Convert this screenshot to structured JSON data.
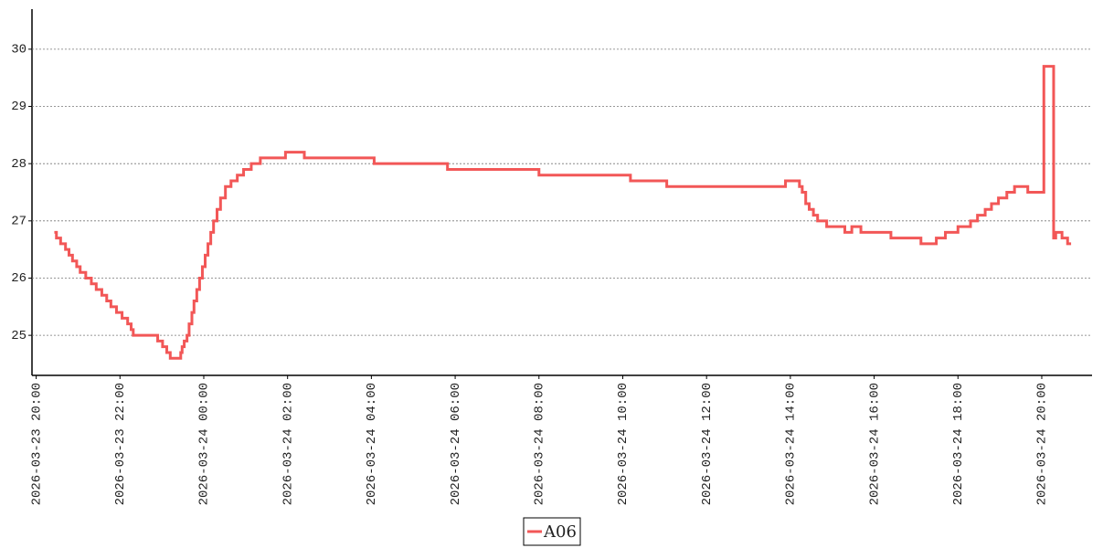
{
  "chart_data": {
    "type": "line",
    "step": true,
    "x": [
      "2026-03-23 20:26",
      "2026-03-23 20:29",
      "2026-03-23 20:35",
      "2026-03-23 20:42",
      "2026-03-23 20:47",
      "2026-03-23 20:52",
      "2026-03-23 20:58",
      "2026-03-23 21:03",
      "2026-03-23 21:11",
      "2026-03-23 21:19",
      "2026-03-23 21:26",
      "2026-03-23 21:34",
      "2026-03-23 21:41",
      "2026-03-23 21:47",
      "2026-03-23 21:55",
      "2026-03-23 22:03",
      "2026-03-23 22:11",
      "2026-03-23 22:16",
      "2026-03-23 22:19",
      "2026-03-23 22:54",
      "2026-03-23 23:01",
      "2026-03-23 23:07",
      "2026-03-23 23:12",
      "2026-03-23 23:27",
      "2026-03-23 23:29",
      "2026-03-23 23:32",
      "2026-03-23 23:36",
      "2026-03-23 23:39",
      "2026-03-23 23:43",
      "2026-03-23 23:46",
      "2026-03-23 23:50",
      "2026-03-23 23:54",
      "2026-03-23 23:58",
      "2026-03-24 00:02",
      "2026-03-24 00:06",
      "2026-03-24 00:10",
      "2026-03-24 00:14",
      "2026-03-24 00:19",
      "2026-03-24 00:24",
      "2026-03-24 00:31",
      "2026-03-24 00:39",
      "2026-03-24 00:48",
      "2026-03-24 00:57",
      "2026-03-24 01:08",
      "2026-03-24 01:21",
      "2026-03-24 01:57",
      "2026-03-24 02:24",
      "2026-03-24 04:04",
      "2026-03-24 05:49",
      "2026-03-24 08:00",
      "2026-03-24 10:11",
      "2026-03-24 11:03",
      "2026-03-24 13:53",
      "2026-03-24 14:13",
      "2026-03-24 14:17",
      "2026-03-24 14:22",
      "2026-03-24 14:27",
      "2026-03-24 14:33",
      "2026-03-24 14:39",
      "2026-03-24 14:52",
      "2026-03-24 15:18",
      "2026-03-24 15:28",
      "2026-03-24 15:41",
      "2026-03-24 16:24",
      "2026-03-24 17:07",
      "2026-03-24 17:29",
      "2026-03-24 17:42",
      "2026-03-24 18:00",
      "2026-03-24 18:18",
      "2026-03-24 18:28",
      "2026-03-24 18:39",
      "2026-03-24 18:48",
      "2026-03-24 18:58",
      "2026-03-24 19:10",
      "2026-03-24 19:21",
      "2026-03-24 19:40",
      "2026-03-24 20:03",
      "2026-03-24 20:17",
      "2026-03-24 20:20",
      "2026-03-24 20:29",
      "2026-03-24 20:37",
      "2026-03-24 20:42"
    ],
    "series": [
      {
        "name": "A06",
        "color": "#f25757",
        "values": [
          26.8,
          26.7,
          26.6,
          26.5,
          26.4,
          26.3,
          26.2,
          26.1,
          26.0,
          25.9,
          25.8,
          25.7,
          25.6,
          25.5,
          25.4,
          25.3,
          25.2,
          25.1,
          25.0,
          24.9,
          24.8,
          24.7,
          24.6,
          24.7,
          24.8,
          24.9,
          25.0,
          25.2,
          25.4,
          25.6,
          25.8,
          26.0,
          26.2,
          26.4,
          26.6,
          26.8,
          27.0,
          27.2,
          27.4,
          27.6,
          27.7,
          27.8,
          27.9,
          28.0,
          28.1,
          28.2,
          28.1,
          28.0,
          27.9,
          27.8,
          27.7,
          27.6,
          27.7,
          27.6,
          27.5,
          27.3,
          27.2,
          27.1,
          27.0,
          26.9,
          26.8,
          26.9,
          26.8,
          26.7,
          26.6,
          26.7,
          26.8,
          26.9,
          27.0,
          27.1,
          27.2,
          27.3,
          27.4,
          27.5,
          27.6,
          27.5,
          29.7,
          26.7,
          26.8,
          26.7,
          26.6,
          26.6
        ]
      }
    ],
    "xlim": [
      "2026-03-23 19:54",
      "2026-03-24 21:12"
    ],
    "xticks": [
      "2026-03-23 20:00",
      "2026-03-23 22:00",
      "2026-03-24 00:00",
      "2026-03-24 02:00",
      "2026-03-24 04:00",
      "2026-03-24 06:00",
      "2026-03-24 08:00",
      "2026-03-24 10:00",
      "2026-03-24 12:00",
      "2026-03-24 14:00",
      "2026-03-24 16:00",
      "2026-03-24 18:00",
      "2026-03-24 20:00"
    ],
    "ylim": [
      24.3,
      30.7
    ],
    "yticks": [
      25,
      26,
      27,
      28,
      29,
      30
    ],
    "grid": true,
    "legend": "bottom"
  }
}
